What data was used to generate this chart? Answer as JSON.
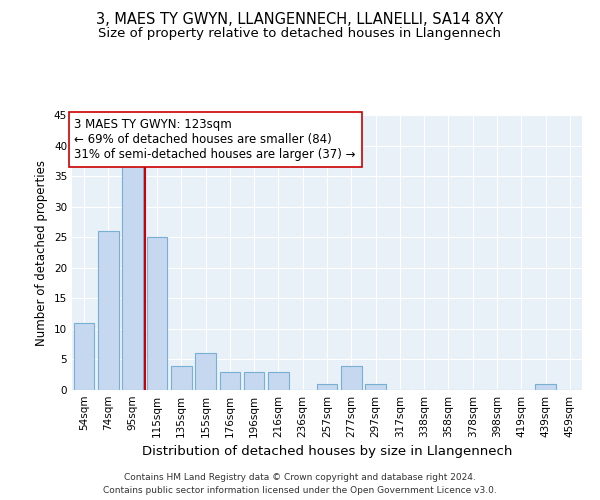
{
  "title": "3, MAES TY GWYN, LLANGENNECH, LLANELLI, SA14 8XY",
  "subtitle": "Size of property relative to detached houses in Llangennech",
  "xlabel": "Distribution of detached houses by size in Llangennech",
  "ylabel": "Number of detached properties",
  "categories": [
    "54sqm",
    "74sqm",
    "95sqm",
    "115sqm",
    "135sqm",
    "155sqm",
    "176sqm",
    "196sqm",
    "216sqm",
    "236sqm",
    "257sqm",
    "277sqm",
    "297sqm",
    "317sqm",
    "338sqm",
    "358sqm",
    "378sqm",
    "398sqm",
    "419sqm",
    "439sqm",
    "459sqm"
  ],
  "values": [
    11,
    26,
    37,
    25,
    4,
    6,
    3,
    3,
    3,
    0,
    1,
    4,
    1,
    0,
    0,
    0,
    0,
    0,
    0,
    1,
    0
  ],
  "bar_color": "#c5d8f0",
  "bar_edge_color": "#7aafd4",
  "property_line_x": 2.5,
  "property_line_color": "#cc0000",
  "annotation_text": "3 MAES TY GWYN: 123sqm\n← 69% of detached houses are smaller (84)\n31% of semi-detached houses are larger (37) →",
  "annotation_box_color": "#ffffff",
  "annotation_box_edge_color": "#cc0000",
  "ylim": [
    0,
    45
  ],
  "yticks": [
    0,
    5,
    10,
    15,
    20,
    25,
    30,
    35,
    40,
    45
  ],
  "background_color": "#e8f0f8",
  "grid_color": "#ffffff",
  "footer_line1": "Contains HM Land Registry data © Crown copyright and database right 2024.",
  "footer_line2": "Contains public sector information licensed under the Open Government Licence v3.0.",
  "title_fontsize": 10.5,
  "subtitle_fontsize": 9.5,
  "xlabel_fontsize": 9.5,
  "ylabel_fontsize": 8.5,
  "tick_fontsize": 7.5,
  "annotation_fontsize": 8.5,
  "footer_fontsize": 6.5
}
